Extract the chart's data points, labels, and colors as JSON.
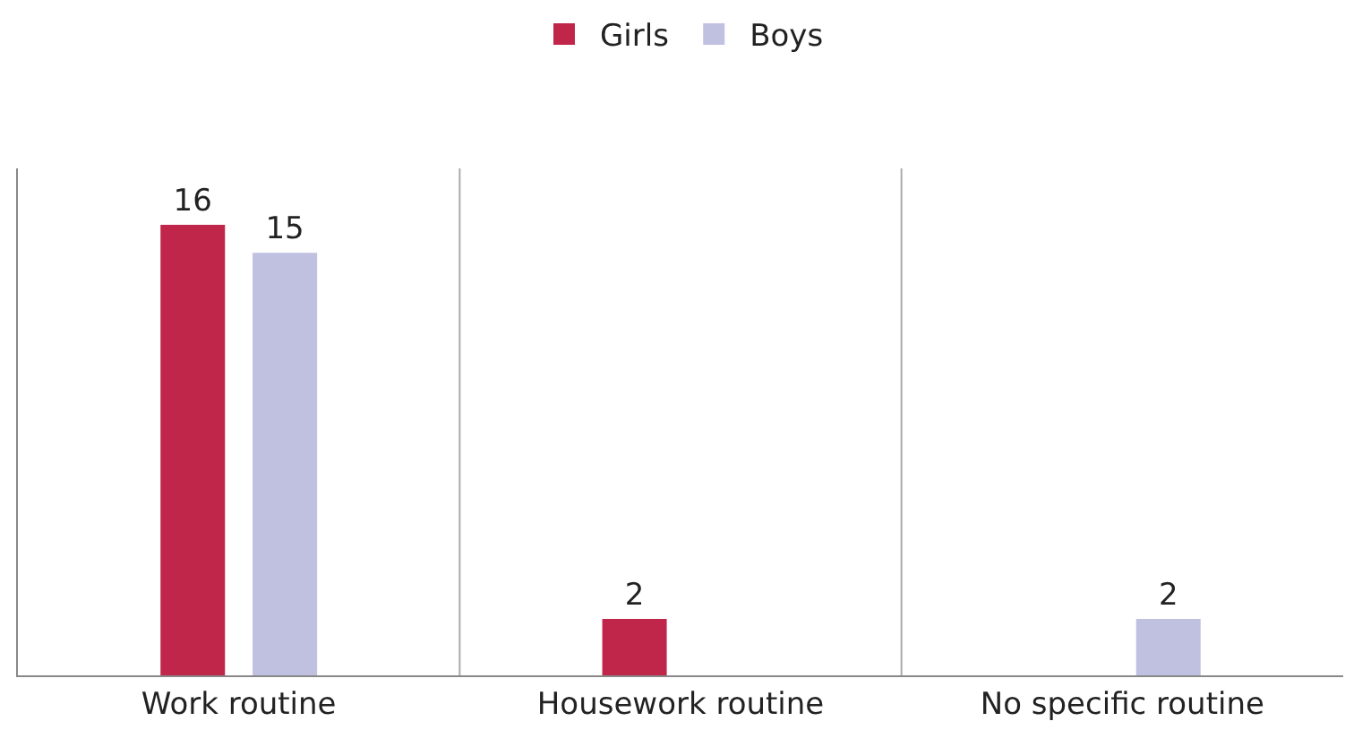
{
  "chart_data": {
    "type": "bar",
    "categories": [
      "Work routine",
      "Housework routine",
      "No specific routine"
    ],
    "series": [
      {
        "name": "Girls",
        "color": "#c0264a",
        "values": [
          16,
          2,
          null
        ]
      },
      {
        "name": "Boys",
        "color": "#c0c0e0",
        "values": [
          15,
          null,
          2
        ]
      }
    ],
    "ylim": [
      0,
      18
    ],
    "data_labels": true,
    "legend": "top",
    "grid": "x",
    "tick_labels": "x"
  }
}
